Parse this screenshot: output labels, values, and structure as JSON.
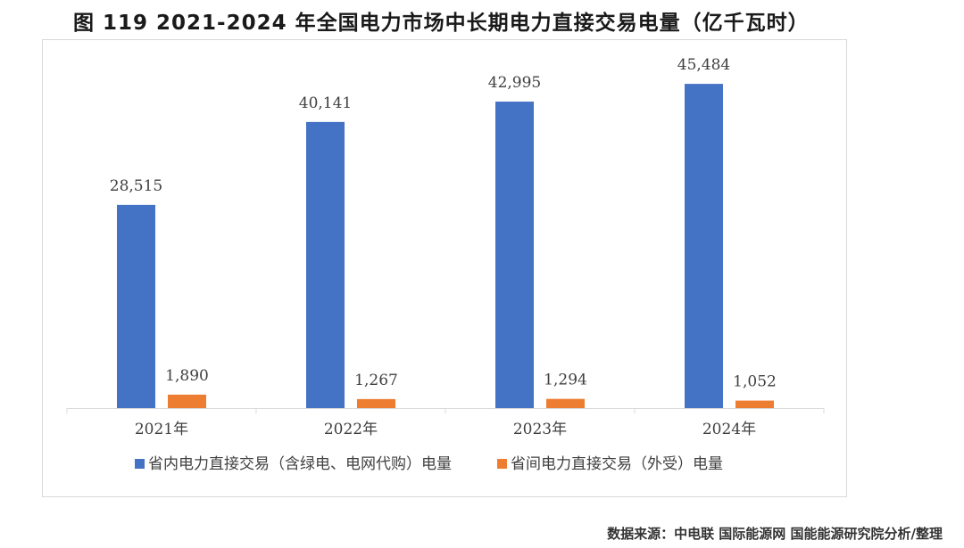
{
  "figure": {
    "title": "图 119 2021-2024 年全国电力市场中长期电力直接交易电量（亿千瓦时）",
    "source": "数据来源：中电联 国际能源网 国能能源研究院分析/整理"
  },
  "chart_data": {
    "type": "bar",
    "title": "图 119 2021-2024 年全国电力市场中长期电力直接交易电量（亿千瓦时）",
    "categories": [
      "2021年",
      "2022年",
      "2023年",
      "2024年"
    ],
    "series": [
      {
        "name": "省内电力直接交易（含绿电、电网代购）电量",
        "color": "#4472C4",
        "values": [
          28515,
          40141,
          42995,
          45484
        ],
        "labels": [
          "28,515",
          "40,141",
          "42,995",
          "45,484"
        ]
      },
      {
        "name": "省间电力直接交易（外受）电量",
        "color": "#ED7D31",
        "values": [
          1890,
          1267,
          1294,
          1052
        ],
        "labels": [
          "1,890",
          "1,267",
          "1,294",
          "1,052"
        ]
      }
    ],
    "ylim": [
      0,
      50000
    ],
    "grid": false,
    "legend": "bottom",
    "axis_color": "#d9d9d9"
  }
}
